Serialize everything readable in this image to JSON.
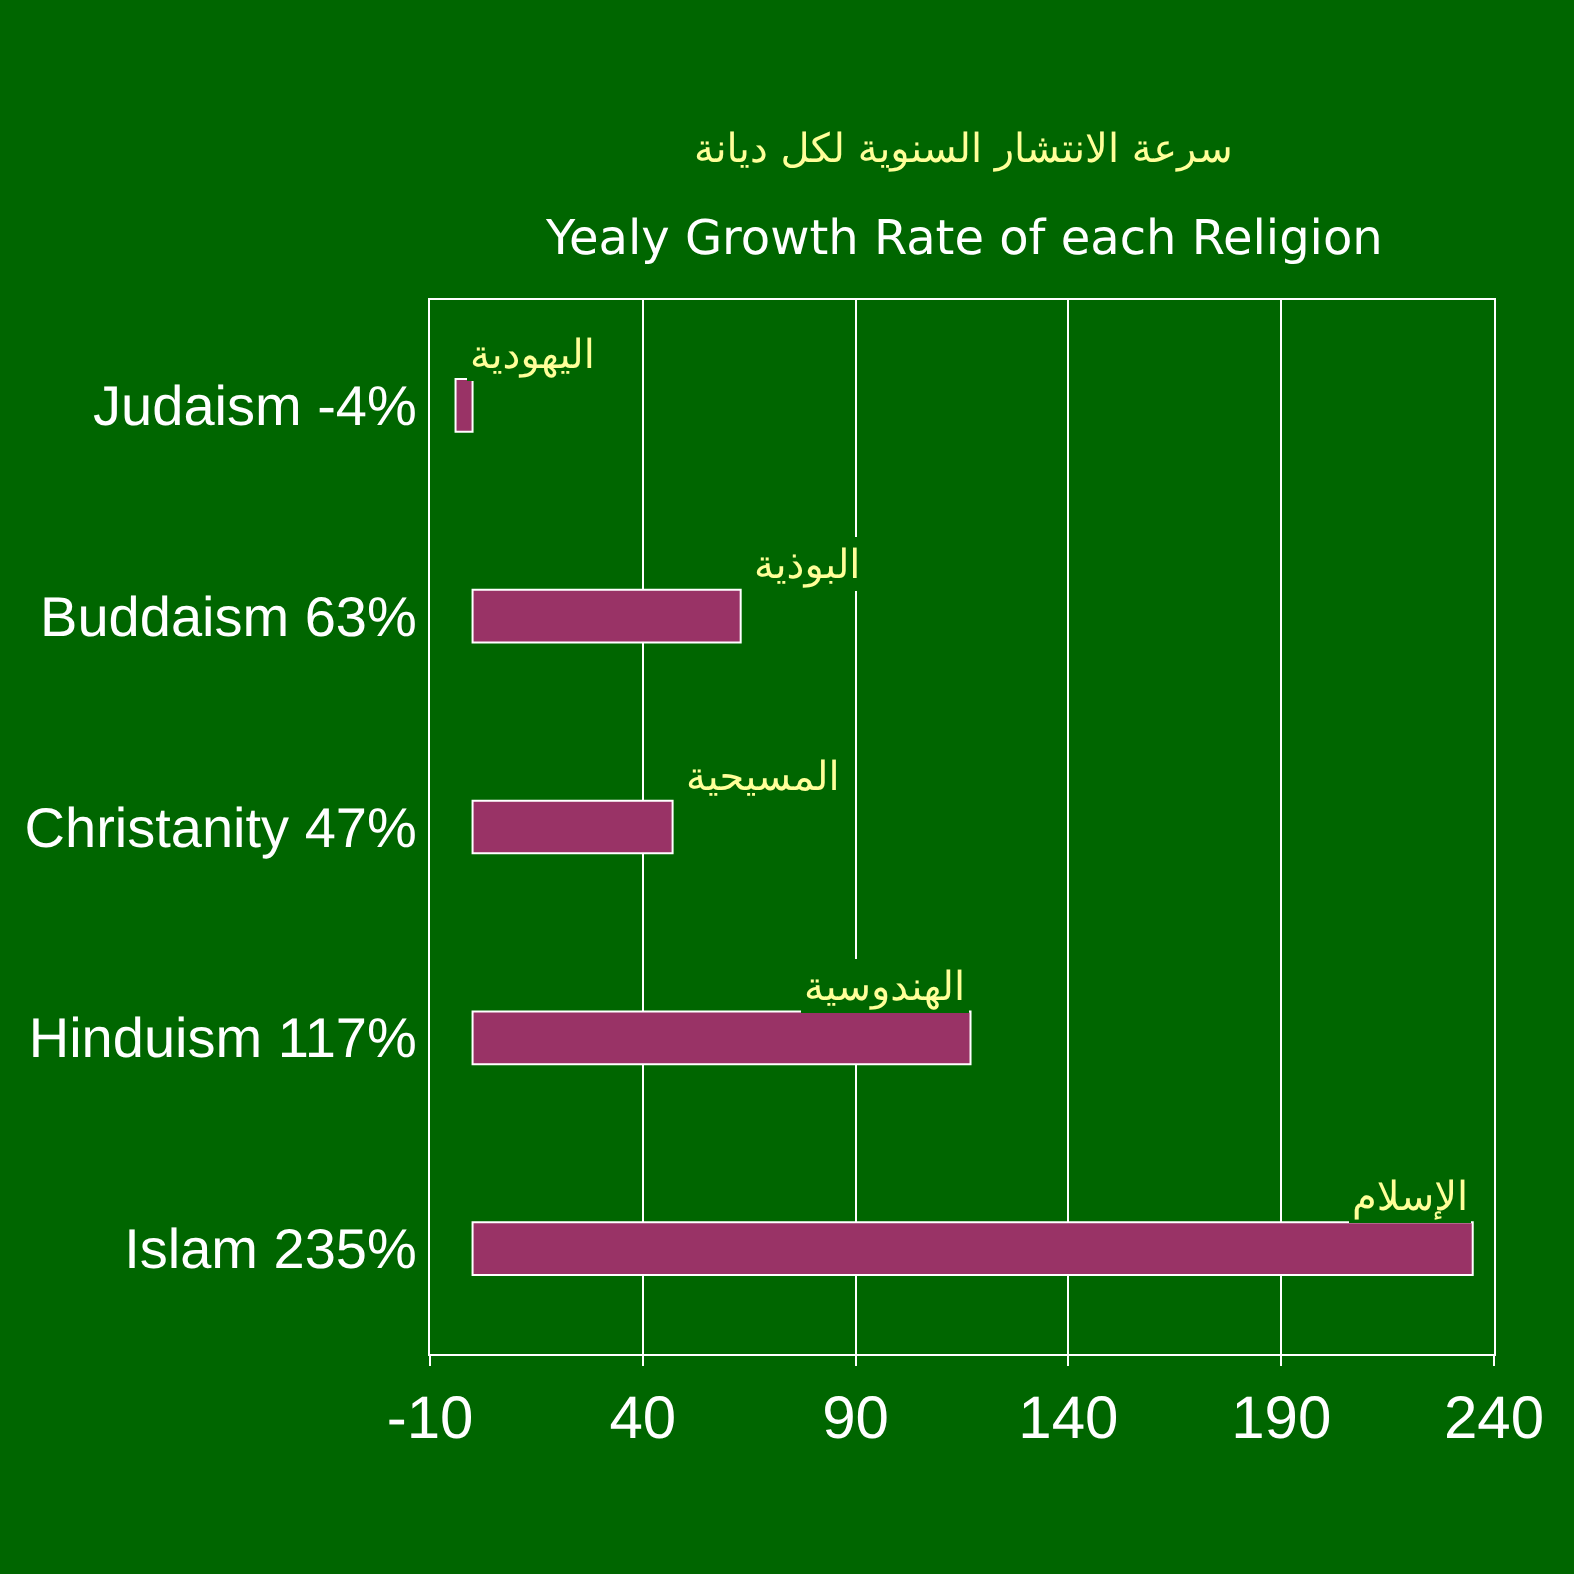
{
  "chart_data": {
    "type": "bar",
    "orientation": "horizontal",
    "title": "سرعة الانتشار السنوية لكل ديانة",
    "subtitle": "Yealy Growth Rate of each Religion",
    "categories": [
      "Judaism -4%",
      "Buddaism 63%",
      "Christanity 47%",
      "Hinduism 117%",
      "Islam 235%"
    ],
    "values": [
      -4,
      63,
      47,
      117,
      235
    ],
    "color": "#993366",
    "xlim": [
      -10,
      240
    ],
    "xticks": [
      -10,
      40,
      90,
      140,
      190,
      240
    ],
    "grid": "x",
    "legend": false,
    "annotations": [
      {
        "text": "اليهودية",
        "x": -4,
        "y": "Judaism -4%"
      },
      {
        "text": "البوذية",
        "x": 63,
        "y": "Buddaism 63%"
      },
      {
        "text": "المسيحية",
        "x": 47,
        "y": "Christanity 47%"
      },
      {
        "text": "الهندوسية",
        "x": 117,
        "y": "Hinduism 117%"
      },
      {
        "text": "الإسلام",
        "x": 235,
        "y": "Islam 235%"
      }
    ]
  }
}
